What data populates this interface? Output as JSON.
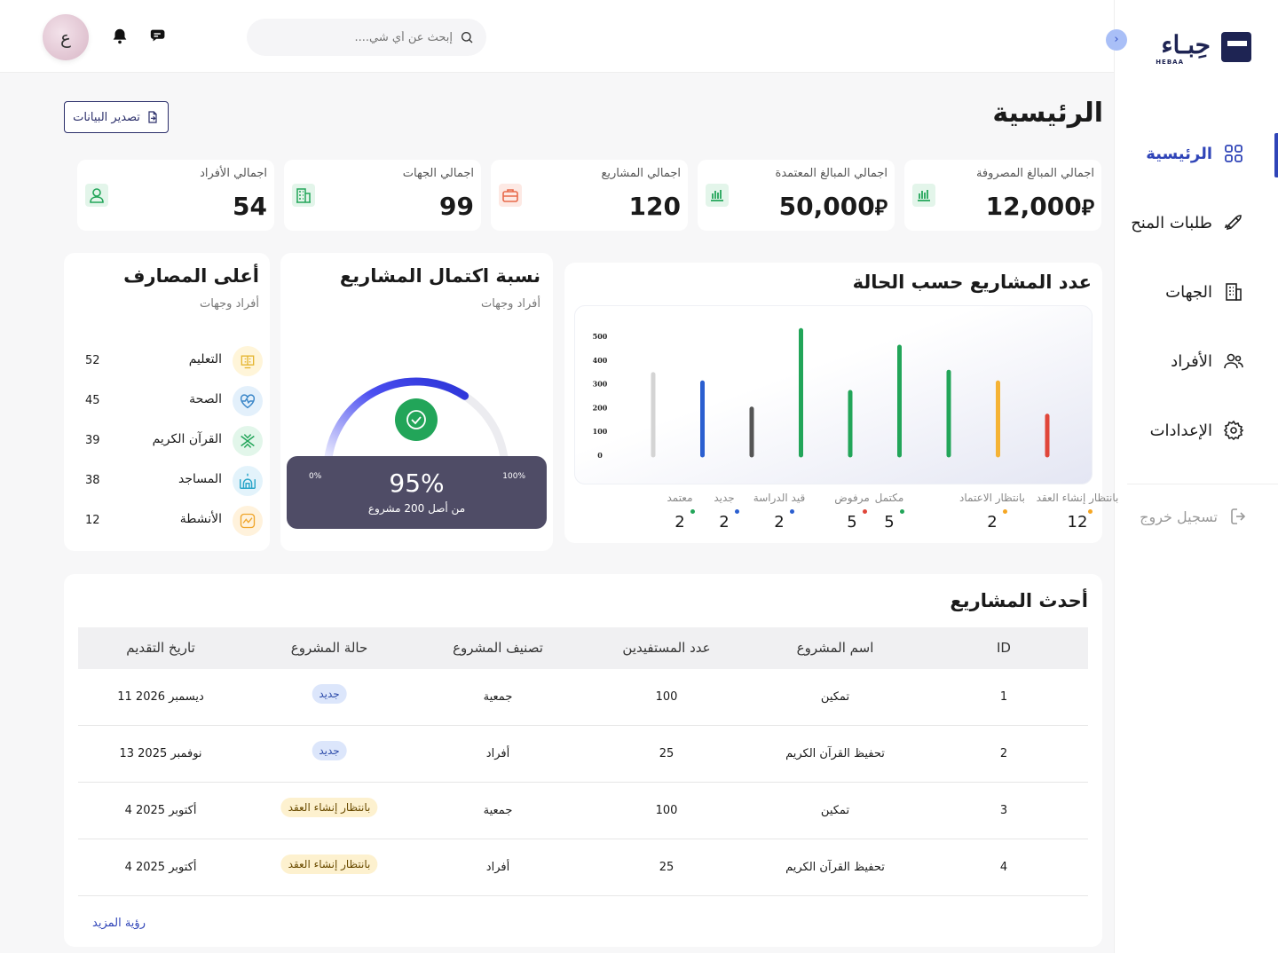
{
  "brand": {
    "name": "حِبـاء",
    "sub": "HEBAA"
  },
  "sidebar": {
    "items": [
      {
        "label": "الرئيسية",
        "icon": "grid-icon",
        "active": true
      },
      {
        "label": "طلبات المنح",
        "icon": "rocket-icon"
      },
      {
        "label": "الجهات",
        "icon": "building-icon"
      },
      {
        "label": "الأفراد",
        "icon": "users-icon"
      },
      {
        "label": "الإعدادات",
        "icon": "gear-icon"
      }
    ],
    "logout": "تسجيل خروج"
  },
  "header": {
    "avatar_letter": "ع",
    "search_placeholder": "إبحث عن أي شي...."
  },
  "page": {
    "title": "الرئيسية",
    "export_label": "تصدير البيانات"
  },
  "stats": [
    {
      "label": "اجمالي المبالغ المصروفة",
      "value": "12,000",
      "currency": true,
      "icon": "chart-bars-icon"
    },
    {
      "label": "اجمالي المبالغ المعتمدة",
      "value": "50,000",
      "currency": true,
      "icon": "chart-bars-icon"
    },
    {
      "label": "اجمالي المشاريع",
      "value": "120",
      "icon": "briefcase-icon"
    },
    {
      "label": "اجمالي الجهات",
      "value": "99",
      "icon": "building-icon"
    },
    {
      "label": "اجمالي الأفراد",
      "value": "54",
      "icon": "user-icon"
    }
  ],
  "status_chart": {
    "title": "عدد المشاريع حسب الحالة",
    "legend": [
      {
        "label": "بانتظار إنشاء العقد",
        "value": "12",
        "color": "#f5a623"
      },
      {
        "label": "بانتظار الاعتماد",
        "value": "2",
        "color": "#f5a623"
      },
      {
        "label": "مكتمل",
        "value": "5",
        "color": "#22a559"
      },
      {
        "label": "مرفوض",
        "value": "5",
        "color": "#e0463a"
      },
      {
        "label": "قيد الدراسة",
        "value": "2",
        "color": "#2b5fd0"
      },
      {
        "label": "جديد",
        "value": "2",
        "color": "#2b5fd0"
      },
      {
        "label": "معتمد",
        "value": "2",
        "color": "#22a559"
      }
    ]
  },
  "chart_data": {
    "type": "bar",
    "title": "عدد المشاريع حسب الحالة",
    "yticks": [
      "0",
      "100",
      "200",
      "300",
      "400",
      "500"
    ],
    "ylim": [
      0,
      500
    ],
    "values": [
      340,
      305,
      195,
      525,
      265,
      455,
      350,
      305,
      165
    ],
    "colors": [
      "#d4d4d4",
      "#2b5fd0",
      "#555555",
      "#22a559",
      "#22a559",
      "#22a559",
      "#22a559",
      "#f5b335",
      "#e0463a"
    ],
    "grid": false
  },
  "completion": {
    "title": "نسبة اكتمال المشاريع",
    "subtitle": "أفراد وجهات",
    "percent": 95,
    "percent_label": "95%",
    "caption": "من أصل 200 مشروع",
    "min_label": "0%",
    "max_label": "100%"
  },
  "top_expenses": {
    "title": "أعلى المصارف",
    "subtitle": "أفراد وجهات",
    "items": [
      {
        "label": "التعليم",
        "value": "52",
        "icon": "education-icon",
        "bg": "#fff5d9",
        "fg": "#e5b530"
      },
      {
        "label": "الصحة",
        "value": "45",
        "icon": "heart-icon",
        "bg": "#e3f0fb",
        "fg": "#3a86c8"
      },
      {
        "label": "القرآن الكريم",
        "value": "39",
        "icon": "quran-icon",
        "bg": "#e2f6ea",
        "fg": "#22a559"
      },
      {
        "label": "المساجد",
        "value": "38",
        "icon": "mosque-icon",
        "bg": "#e3f3fb",
        "fg": "#2ba6c9"
      },
      {
        "label": "الأنشطة",
        "value": "12",
        "icon": "activity-icon",
        "bg": "#fff2dc",
        "fg": "#f0a52a"
      }
    ]
  },
  "projects": {
    "title": "أحدث المشاريع",
    "columns": [
      "ID",
      "اسم المشروع",
      "عدد المستفيدين",
      "تصنيف المشروع",
      "حالة المشروع",
      "تاريخ التقديم"
    ],
    "rows": [
      {
        "id": "1",
        "name": "تمكين",
        "beneficiaries": "100",
        "category": "جمعية",
        "status": "جديد",
        "status_type": "new",
        "date": "11 ديسمبر 2026"
      },
      {
        "id": "2",
        "name": "تحفيظ القرآن الكريم",
        "beneficiaries": "25",
        "category": "أفراد",
        "status": "جديد",
        "status_type": "new",
        "date": "13 نوفمبر 2025"
      },
      {
        "id": "3",
        "name": "تمكين",
        "beneficiaries": "100",
        "category": "جمعية",
        "status": "بانتظار إنشاء العقد",
        "status_type": "wait",
        "date": "4 أكتوبر 2025"
      },
      {
        "id": "4",
        "name": "تحفيظ القرآن الكريم",
        "beneficiaries": "25",
        "category": "أفراد",
        "status": "بانتظار إنشاء العقد",
        "status_type": "wait",
        "date": "4 أكتوبر 2025"
      }
    ],
    "see_more": "رؤية المزيد"
  }
}
